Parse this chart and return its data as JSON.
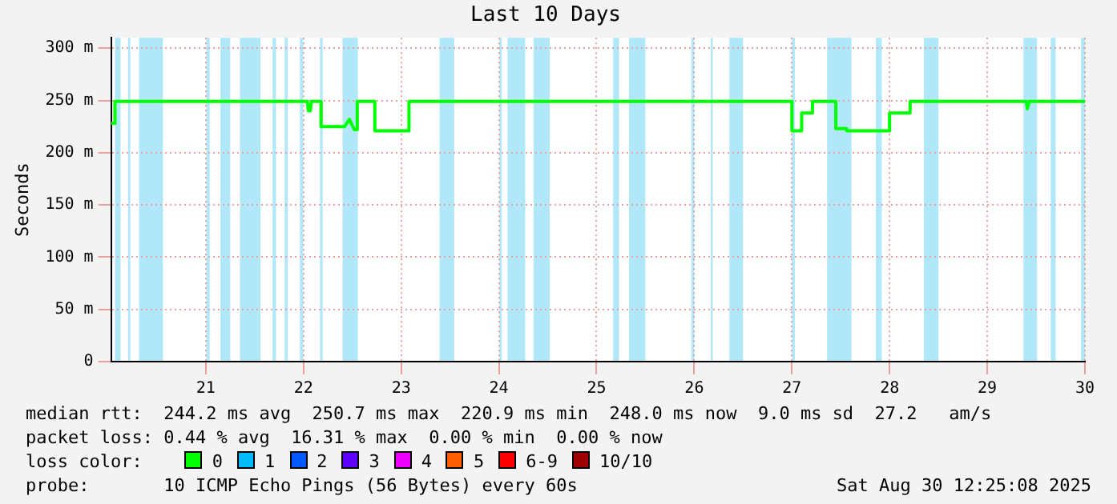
{
  "chart_data": {
    "type": "line",
    "title": "Last 10 Days",
    "ylabel": "Seconds",
    "xlim": [
      20.03,
      30
    ],
    "xticks": [
      21,
      22,
      23,
      24,
      25,
      26,
      27,
      28,
      29,
      30
    ],
    "ylim": [
      0,
      310
    ],
    "yticks": [
      0,
      {
        "value": 50,
        "label": "50 m"
      },
      {
        "value": 100,
        "label": "100 m"
      },
      {
        "value": 150,
        "label": "150 m"
      },
      {
        "value": 200,
        "label": "200 m"
      },
      {
        "value": 250,
        "label": "250 m"
      },
      {
        "value": 300,
        "label": "300 m"
      }
    ],
    "grid": true,
    "legend": "bottom",
    "legend_title": "loss color:",
    "marker": "none",
    "line_style": "solid",
    "series": [
      {
        "name": "0",
        "color": "#00ff00",
        "x": [
          20.03,
          20.06,
          20.07,
          22.04,
          22.05,
          22.07,
          22.08,
          22.18,
          22.18,
          22.42,
          22.47,
          22.52,
          22.55,
          22.55,
          22.73,
          22.73,
          23.08,
          23.08,
          27.0,
          27.0,
          27.1,
          27.1,
          27.21,
          27.21,
          27.45,
          27.45,
          27.56,
          27.56,
          28.0,
          28.0,
          28.21,
          28.21,
          29.4,
          29.41,
          29.43,
          30.0
        ],
        "values": [
          228,
          228,
          249,
          249,
          240,
          240,
          249,
          249,
          225,
          225,
          232,
          222,
          222,
          249,
          249,
          221,
          221,
          249,
          249,
          221,
          221,
          238,
          238,
          249,
          249,
          223,
          223,
          221,
          221,
          238,
          238,
          249,
          249,
          242,
          249,
          249
        ]
      },
      {
        "name": "1",
        "color": "#00bbff"
      },
      {
        "name": "2",
        "color": "#0059ff"
      },
      {
        "name": "3",
        "color": "#5e00ff"
      },
      {
        "name": "4",
        "color": "#ee00ff"
      },
      {
        "name": "5",
        "color": "#ff5e00"
      },
      {
        "name": "6-9",
        "color": "#ff0000"
      },
      {
        "name": "10/10",
        "color": "#a00000"
      }
    ],
    "bands": [
      {
        "axis": "x",
        "from": 20.07,
        "to": 20.127,
        "color": "#b0e8fa"
      },
      {
        "axis": "x",
        "from": 20.204,
        "to": 20.227,
        "color": "#b0e8fa"
      },
      {
        "axis": "x",
        "from": 20.316,
        "to": 20.561,
        "color": "#b0e8fa"
      },
      {
        "axis": "x",
        "from": 21.006,
        "to": 21.04,
        "color": "#b0e8fa"
      },
      {
        "axis": "x",
        "from": 21.15,
        "to": 21.25,
        "color": "#b0e8fa"
      },
      {
        "axis": "x",
        "from": 21.35,
        "to": 21.56,
        "color": "#b0e8fa"
      },
      {
        "axis": "x",
        "from": 21.684,
        "to": 21.718,
        "color": "#b0e8fa"
      },
      {
        "axis": "x",
        "from": 21.807,
        "to": 21.84,
        "color": "#b0e8fa"
      },
      {
        "axis": "x",
        "from": 21.963,
        "to": 21.997,
        "color": "#b0e8fa"
      },
      {
        "axis": "x",
        "from": 22.169,
        "to": 22.197,
        "color": "#b0e8fa"
      },
      {
        "axis": "x",
        "from": 22.4,
        "to": 22.557,
        "color": "#b0e8fa"
      },
      {
        "axis": "x",
        "from": 23.393,
        "to": 23.543,
        "color": "#b0e8fa"
      },
      {
        "axis": "x",
        "from": 24.005,
        "to": 24.03,
        "color": "#b0e8fa"
      },
      {
        "axis": "x",
        "from": 24.088,
        "to": 24.27,
        "color": "#b0e8fa"
      },
      {
        "axis": "x",
        "from": 24.355,
        "to": 24.52,
        "color": "#b0e8fa"
      },
      {
        "axis": "x",
        "from": 25.17,
        "to": 25.23,
        "color": "#b0e8fa"
      },
      {
        "axis": "x",
        "from": 25.332,
        "to": 25.5,
        "color": "#b0e8fa"
      },
      {
        "axis": "x",
        "from": 25.97,
        "to": 26.0,
        "color": "#b0e8fa"
      },
      {
        "axis": "x",
        "from": 26.17,
        "to": 26.19,
        "color": "#b0e8fa"
      },
      {
        "axis": "x",
        "from": 26.36,
        "to": 26.5,
        "color": "#b0e8fa"
      },
      {
        "axis": "x",
        "from": 27.0,
        "to": 27.03,
        "color": "#b0e8fa"
      },
      {
        "axis": "x",
        "from": 27.36,
        "to": 27.61,
        "color": "#b0e8fa"
      },
      {
        "axis": "x",
        "from": 27.86,
        "to": 27.92,
        "color": "#b0e8fa"
      },
      {
        "axis": "x",
        "from": 28.35,
        "to": 28.5,
        "color": "#b0e8fa"
      },
      {
        "axis": "x",
        "from": 29.37,
        "to": 29.51,
        "color": "#b0e8fa"
      },
      {
        "axis": "x",
        "from": 29.65,
        "to": 29.7,
        "color": "#b0e8fa"
      },
      {
        "axis": "x",
        "from": 29.96,
        "to": 30.0,
        "color": "#b0e8fa"
      }
    ],
    "annotations": [
      "median rtt:  244.2 ms avg  250.7 ms max  220.9 ms min  248.0 ms now  9.0 ms sd  27.2   am/s",
      "packet loss: 0.44 % avg  16.31 % max  0.00 % min  0.00 % now",
      "probe:       10 ICMP Echo Pings (56 Bytes) every 60s",
      "Sat Aug 30 12:25:08 2025"
    ]
  }
}
